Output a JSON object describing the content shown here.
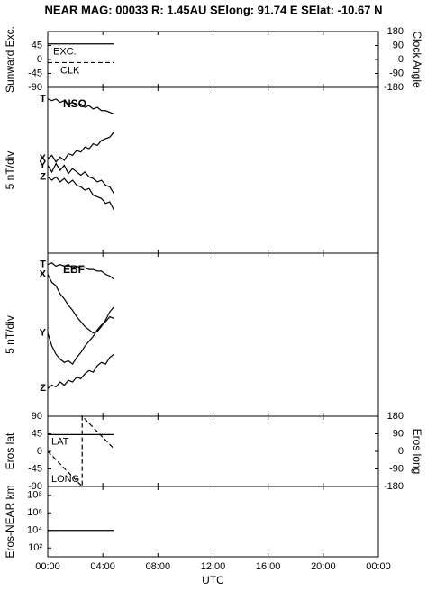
{
  "title": "NEAR MAG: 00033  R: 1.45AU  SElong:  91.74 E  SElat:  -10.67 N",
  "chart_data": [
    {
      "type": "line",
      "ylabel": "Sunward Exc.",
      "y2label": "Clock Angle",
      "ylim": [
        -90,
        90
      ],
      "yticks": [
        -90,
        -45,
        0,
        45
      ],
      "y2lim": [
        -180,
        180
      ],
      "y2ticks": [
        -180,
        -90,
        0,
        90,
        180
      ],
      "series": [
        {
          "name": "EXC.",
          "color": "#000000",
          "dash": false,
          "x": [
            0,
            4.8
          ],
          "values": [
            50,
            50
          ]
        },
        {
          "name": "CLK",
          "color": "#000000",
          "dash": true,
          "axis": "y2",
          "x": [
            0,
            4.8
          ],
          "values": [
            -20,
            -20
          ]
        }
      ]
    },
    {
      "type": "line",
      "ylabel": "5 nT/div",
      "label": "NSO",
      "ylim": [
        0,
        10
      ],
      "series": [
        {
          "name": "T",
          "color": "#000000",
          "x": [
            0,
            0.3,
            0.6,
            0.9,
            1.2,
            1.5,
            1.8,
            2.1,
            2.4,
            2.7,
            3.0,
            3.3,
            3.6,
            3.9,
            4.2,
            4.5,
            4.8
          ],
          "values": [
            9.3,
            9.2,
            9.3,
            9.1,
            9.2,
            9.0,
            9.1,
            8.9,
            9.0,
            8.8,
            8.9,
            8.7,
            8.8,
            8.6,
            8.6,
            8.5,
            8.4
          ]
        },
        {
          "name": "X",
          "color": "#000000",
          "x": [
            0,
            0.3,
            0.6,
            0.9,
            1.2,
            1.5,
            1.8,
            2.1,
            2.4,
            2.7,
            3.0,
            3.3,
            3.6,
            3.9,
            4.2,
            4.5,
            4.8
          ],
          "values": [
            5.7,
            5.9,
            5.5,
            5.8,
            5.6,
            6.0,
            5.9,
            6.2,
            6.1,
            6.4,
            6.3,
            6.6,
            6.5,
            6.8,
            6.9,
            7.0,
            7.3
          ]
        },
        {
          "name": "Y",
          "color": "#000000",
          "x": [
            0,
            0.3,
            0.6,
            0.9,
            1.2,
            1.5,
            1.8,
            2.1,
            2.4,
            2.7,
            3.0,
            3.3,
            3.6,
            3.9,
            4.2,
            4.5,
            4.8
          ],
          "values": [
            5.3,
            4.9,
            5.4,
            5.0,
            5.3,
            4.8,
            5.1,
            4.9,
            4.7,
            4.9,
            4.6,
            4.5,
            4.3,
            4.4,
            4.1,
            4.0,
            3.6
          ]
        },
        {
          "name": "Z",
          "color": "#000000",
          "x": [
            0,
            0.3,
            0.6,
            0.9,
            1.2,
            1.5,
            1.8,
            2.1,
            2.4,
            2.7,
            3.0,
            3.3,
            3.6,
            3.9,
            4.2,
            4.5,
            4.8
          ],
          "values": [
            4.6,
            4.4,
            4.6,
            4.3,
            4.5,
            4.2,
            4.4,
            4.1,
            4.0,
            3.8,
            3.9,
            3.5,
            3.4,
            3.3,
            3.0,
            3.1,
            2.6
          ]
        }
      ]
    },
    {
      "type": "line",
      "ylabel": "5 nT/div",
      "label": "EBF",
      "ylim": [
        0,
        10
      ],
      "series": [
        {
          "name": "T",
          "color": "#000000",
          "x": [
            0,
            0.3,
            0.6,
            0.9,
            1.2,
            1.5,
            1.8,
            2.1,
            2.4,
            2.7,
            3.0,
            3.3,
            3.6,
            3.9,
            4.2,
            4.5,
            4.8
          ],
          "values": [
            9.3,
            9.4,
            9.2,
            9.3,
            9.2,
            9.3,
            9.1,
            9.2,
            9.1,
            9.1,
            9.0,
            9.0,
            8.9,
            8.9,
            8.7,
            8.6,
            8.4
          ]
        },
        {
          "name": "X",
          "color": "#000000",
          "x": [
            0,
            0.3,
            0.6,
            0.9,
            1.2,
            1.5,
            1.8,
            2.1,
            2.4,
            2.7,
            3.0,
            3.3,
            3.6,
            3.9,
            4.2,
            4.5,
            4.8
          ],
          "values": [
            8.7,
            8.2,
            8.0,
            7.5,
            7.2,
            6.8,
            6.5,
            6.1,
            5.8,
            5.5,
            5.3,
            5.1,
            5.2,
            5.5,
            5.9,
            6.4,
            6.7
          ]
        },
        {
          "name": "Y",
          "color": "#000000",
          "x": [
            0,
            0.3,
            0.6,
            0.9,
            1.2,
            1.5,
            1.8,
            2.1,
            2.4,
            2.7,
            3.0,
            3.3,
            3.6,
            3.9,
            4.2,
            4.5,
            4.8
          ],
          "values": [
            5.1,
            4.3,
            3.8,
            3.5,
            3.3,
            3.4,
            3.2,
            3.6,
            3.9,
            4.3,
            4.6,
            4.9,
            5.3,
            5.6,
            5.8,
            6.1,
            6.0
          ]
        },
        {
          "name": "Z",
          "color": "#000000",
          "x": [
            0,
            0.3,
            0.6,
            0.9,
            1.2,
            1.5,
            1.8,
            2.1,
            2.4,
            2.7,
            3.0,
            3.3,
            3.6,
            3.9,
            4.2,
            4.5,
            4.8
          ],
          "values": [
            1.7,
            1.9,
            1.8,
            2.1,
            1.9,
            2.2,
            2.1,
            2.4,
            2.3,
            2.6,
            2.8,
            2.7,
            3.1,
            3.3,
            3.2,
            3.6,
            3.8
          ]
        }
      ]
    },
    {
      "type": "line",
      "ylabel": "Eros lat",
      "y2label": "Eros long",
      "ylim": [
        -90,
        90
      ],
      "yticks": [
        -90,
        -45,
        0,
        45,
        90
      ],
      "y2lim": [
        -180,
        180
      ],
      "y2ticks": [
        -180,
        -90,
        0,
        90,
        180
      ],
      "series": [
        {
          "name": "LAT",
          "color": "#000000",
          "dash": false,
          "x": [
            0,
            4.8
          ],
          "values": [
            43,
            43
          ]
        },
        {
          "name": "LONG",
          "color": "#000000",
          "dash": true,
          "axis": "y2",
          "x": [
            0,
            2.5,
            2.5,
            4.8
          ],
          "values": [
            0,
            -180,
            180,
            14
          ]
        }
      ]
    },
    {
      "type": "line",
      "ylabel": "Eros-NEAR km",
      "yscale": "log",
      "ylim": [
        10,
        1000000000
      ],
      "yticks": [
        {
          "value": 100,
          "label": "10²"
        },
        {
          "value": 10000,
          "label": "10⁴"
        },
        {
          "value": 1000000,
          "label": "10⁶"
        },
        {
          "value": 100000000,
          "label": "10⁸"
        }
      ],
      "xlabel": "UTC",
      "xlim": [
        0,
        24
      ],
      "xticks": [
        {
          "value": 0,
          "label": "00:00"
        },
        {
          "value": 4,
          "label": "04:00"
        },
        {
          "value": 8,
          "label": "08:00"
        },
        {
          "value": 12,
          "label": "12:00"
        },
        {
          "value": 16,
          "label": "16:00"
        },
        {
          "value": 20,
          "label": "20:00"
        },
        {
          "value": 24,
          "label": "00:00"
        }
      ],
      "series": [
        {
          "color": "#000000",
          "x": [
            0,
            4.8
          ],
          "values": [
            10000,
            10000
          ]
        }
      ]
    }
  ]
}
